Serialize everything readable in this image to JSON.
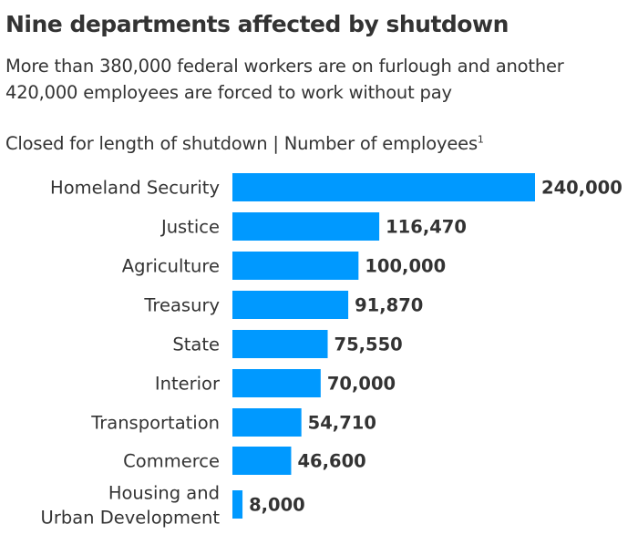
{
  "title": "Nine departments affected by shutdown",
  "subtitle": "More than 380,000 federal workers are on furlough and another 420,000 employees are forced to work without pay",
  "header": {
    "text": "Closed for length of shutdown | Number of employees",
    "footnote_mark": "1"
  },
  "chart_data": {
    "type": "bar",
    "orientation": "horizontal",
    "categories": [
      "Homeland Security",
      "Justice",
      "Agriculture",
      "Treasury",
      "State",
      "Interior",
      "Transportation",
      "Commerce",
      "Housing and Urban Development"
    ],
    "values": [
      240000,
      116470,
      100000,
      91870,
      75550,
      70000,
      54710,
      46600,
      8000
    ],
    "value_labels": [
      "240,000",
      "116,470",
      "100,000",
      "91,870",
      "75,550",
      "70,000",
      "54,710",
      "46,600",
      "8,000"
    ],
    "bar_color": "#0099ff",
    "grid": false,
    "legend": "none"
  }
}
